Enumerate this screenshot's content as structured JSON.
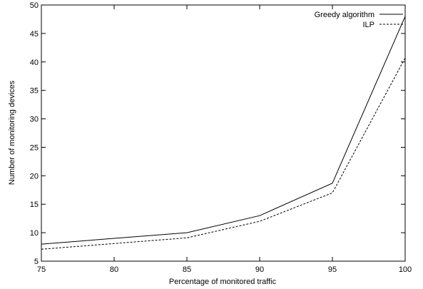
{
  "chart_data": {
    "type": "line",
    "xlabel": "Percentage of monitored traffic",
    "ylabel": "Number of monitoring devices",
    "xlim": [
      75,
      100
    ],
    "ylim": [
      5,
      50
    ],
    "xticks": [
      75,
      80,
      85,
      90,
      95,
      100
    ],
    "yticks": [
      5,
      10,
      15,
      20,
      25,
      30,
      35,
      40,
      45,
      50
    ],
    "grid": false,
    "legend_position": "top-right",
    "series": [
      {
        "name": "Greedy algorithm",
        "style": "solid",
        "color": "#000000",
        "x": [
          75,
          85,
          90,
          95,
          100
        ],
        "y": [
          8,
          10,
          13,
          18.7,
          48
        ]
      },
      {
        "name": "ILP",
        "style": "dashed",
        "color": "#000000",
        "x": [
          75,
          85,
          90,
          95,
          100
        ],
        "y": [
          7.1,
          9.1,
          12,
          17,
          40.7
        ]
      }
    ]
  }
}
